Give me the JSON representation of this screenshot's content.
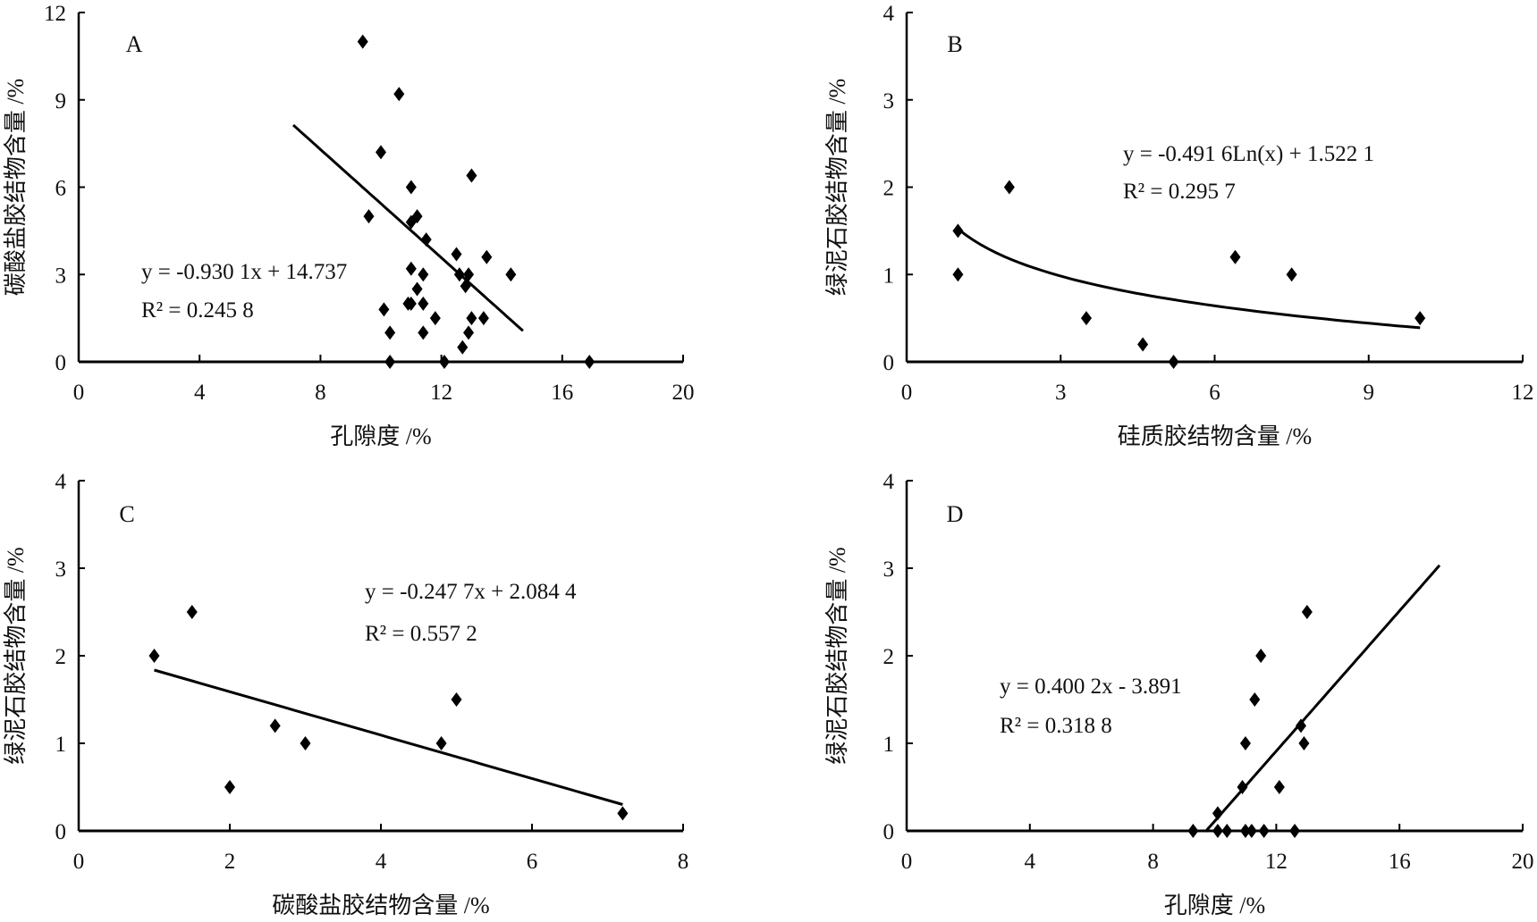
{
  "chart_data": [
    {
      "type": "scatter",
      "panel": "A",
      "xlabel": "孔隙度 /%",
      "ylabel": "碳酸盐胶结物含量 /%",
      "xlim": [
        0,
        20
      ],
      "ylim": [
        0,
        12
      ],
      "xticks": [
        0,
        4,
        8,
        12,
        16,
        20
      ],
      "yticks": [
        0,
        3,
        6,
        9,
        12
      ],
      "points": [
        [
          9.4,
          11
        ],
        [
          10.6,
          9.2
        ],
        [
          10.0,
          7.2
        ],
        [
          13.0,
          6.4
        ],
        [
          11.0,
          6.0
        ],
        [
          9.6,
          5.0
        ],
        [
          11.0,
          4.8
        ],
        [
          11.2,
          5.0
        ],
        [
          11.5,
          4.2
        ],
        [
          12.5,
          3.7
        ],
        [
          13.5,
          3.6
        ],
        [
          14.3,
          3.0
        ],
        [
          11.0,
          3.2
        ],
        [
          11.4,
          3.0
        ],
        [
          12.6,
          3.0
        ],
        [
          12.9,
          3.0
        ],
        [
          12.8,
          2.6
        ],
        [
          11.2,
          2.5
        ],
        [
          10.9,
          2.0
        ],
        [
          11.0,
          2.0
        ],
        [
          11.4,
          2.0
        ],
        [
          10.1,
          1.8
        ],
        [
          11.8,
          1.5
        ],
        [
          13.0,
          1.5
        ],
        [
          13.4,
          1.5
        ],
        [
          10.3,
          1.0
        ],
        [
          11.4,
          1.0
        ],
        [
          12.9,
          1.0
        ],
        [
          12.7,
          0.5
        ],
        [
          10.3,
          0
        ],
        [
          12.1,
          0
        ],
        [
          16.9,
          0
        ]
      ],
      "fit": {
        "kind": "linear",
        "a": -0.9301,
        "b": 14.737,
        "xrange": [
          7.1,
          14.7
        ]
      },
      "equation": "y = -0.930 1x + 14.737",
      "r2": "R² = 0.245 8"
    },
    {
      "type": "scatter",
      "panel": "B",
      "xlabel": "硅质胶结物含量 /%",
      "ylabel": "绿泥石胶结物含量 /%",
      "xlim": [
        0,
        12
      ],
      "ylim": [
        0,
        4
      ],
      "xticks": [
        0,
        3,
        6,
        9,
        12
      ],
      "yticks": [
        0,
        1,
        2,
        3,
        4
      ],
      "points": [
        [
          1,
          1.5
        ],
        [
          1,
          1.0
        ],
        [
          2,
          2.0
        ],
        [
          3.5,
          0.5
        ],
        [
          4.6,
          0.2
        ],
        [
          5.2,
          0
        ],
        [
          6.4,
          1.2
        ],
        [
          7.5,
          1.0
        ],
        [
          10,
          0.5
        ]
      ],
      "fit": {
        "kind": "log",
        "a": -0.4916,
        "b": 1.5221,
        "xrange": [
          1,
          10
        ]
      },
      "equation": "y = -0.491 6Ln(x) + 1.522 1",
      "r2": "R² = 0.295 7"
    },
    {
      "type": "scatter",
      "panel": "C",
      "xlabel": "碳酸盐胶结物含量 /%",
      "ylabel": "绿泥石胶结物含量 /%",
      "xlim": [
        0,
        8
      ],
      "ylim": [
        0,
        4
      ],
      "xticks": [
        0,
        2,
        4,
        6,
        8
      ],
      "yticks": [
        0,
        1,
        2,
        3,
        4
      ],
      "points": [
        [
          1,
          2
        ],
        [
          1.5,
          2.5
        ],
        [
          2,
          0.5
        ],
        [
          2.6,
          1.2
        ],
        [
          3,
          1
        ],
        [
          4.8,
          1
        ],
        [
          5,
          1.5
        ],
        [
          7.2,
          0.2
        ]
      ],
      "fit": {
        "kind": "linear",
        "a": -0.2477,
        "b": 2.0844,
        "xrange": [
          1,
          7.2
        ]
      },
      "equation": "y = -0.247 7x + 2.084 4",
      "r2": "R² = 0.557 2"
    },
    {
      "type": "scatter",
      "panel": "D",
      "xlabel": "孔隙度 /%",
      "ylabel": "绿泥石胶结物含量 /%",
      "xlim": [
        0,
        20
      ],
      "ylim": [
        0,
        4
      ],
      "xticks": [
        0,
        4,
        8,
        12,
        16,
        20
      ],
      "yticks": [
        0,
        1,
        2,
        3,
        4
      ],
      "points": [
        [
          13,
          2.5
        ],
        [
          11.5,
          2
        ],
        [
          11.3,
          1.5
        ],
        [
          12.8,
          1.2
        ],
        [
          11,
          1
        ],
        [
          12.9,
          1
        ],
        [
          10.9,
          0.5
        ],
        [
          12.1,
          0.5
        ],
        [
          10.1,
          0.2
        ],
        [
          9.3,
          0
        ],
        [
          10.1,
          0
        ],
        [
          10.4,
          0
        ],
        [
          11,
          0
        ],
        [
          11.2,
          0
        ],
        [
          11.6,
          0
        ],
        [
          12.6,
          0
        ]
      ],
      "fit": {
        "kind": "linear",
        "a": 0.4002,
        "b": -3.891,
        "xrange": [
          9.7,
          17.3
        ]
      },
      "equation": "y = 0.400 2x - 3.891",
      "r2": "R² = 0.318 8"
    }
  ]
}
